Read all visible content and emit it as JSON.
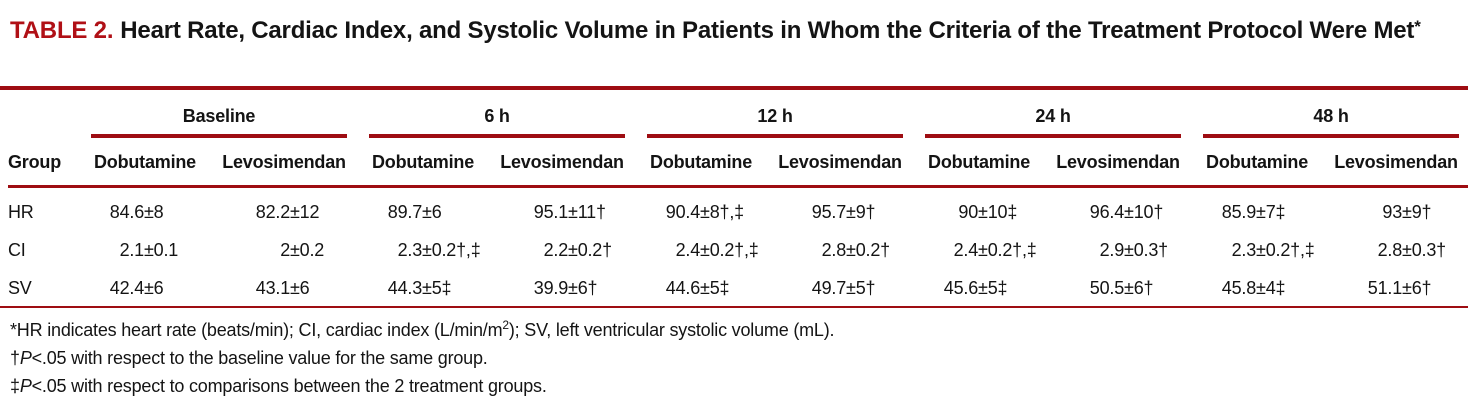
{
  "title": {
    "label": "TABLE 2.",
    "text": "Heart Rate, Cardiac Index, and Systolic Volume in Patients in Whom the Criteria of the Treatment Protocol Were Met",
    "asterisk": "*"
  },
  "colors": {
    "accent_red_title": "#b01016",
    "rule_red": "#9e0d12",
    "text": "#141414"
  },
  "table": {
    "group_header": "Group",
    "periods": [
      "Baseline",
      "6 h",
      "12 h",
      "24 h",
      "48 h"
    ],
    "treatments": {
      "dobutamine": "Dobutamine",
      "levosimendan": "Levosimendan"
    },
    "rows": [
      {
        "label": "HR",
        "values": [
          "84.6±8",
          "82.2±12",
          "89.7±6",
          "95.1±11†",
          "90.4±8†,‡",
          "95.7±9†",
          "90±10‡",
          "96.4±10†",
          "85.9±7‡",
          "93±9†"
        ]
      },
      {
        "label": "CI",
        "values": [
          "2.1±0.1",
          "2±0.2",
          "2.3±0.2†,‡",
          "2.2±0.2†",
          "2.4±0.2†,‡",
          "2.8±0.2†",
          "2.4±0.2†,‡",
          "2.9±0.3†",
          "2.3±0.2†,‡",
          "2.8±0.3†"
        ]
      },
      {
        "label": "SV",
        "values": [
          "42.4±6",
          "43.1±6",
          "44.3±5‡",
          "39.9±6†",
          "44.6±5‡",
          "49.7±5†",
          "45.6±5‡",
          "50.5±6†",
          "45.8±4‡",
          "51.1±6†"
        ]
      }
    ]
  },
  "footnotes": [
    {
      "pre": "*HR indicates heart rate (beats/min); CI, cardiac index (L/min/m",
      "sup": "2",
      "post": "); SV, left ventricular systolic volume (mL)."
    },
    {
      "symbol": "†",
      "p": "P",
      "text": "<.05 with respect to the baseline value for the same group."
    },
    {
      "symbol": "‡",
      "p": "P",
      "text": "<.05 with respect to comparisons between the 2 treatment groups."
    }
  ]
}
